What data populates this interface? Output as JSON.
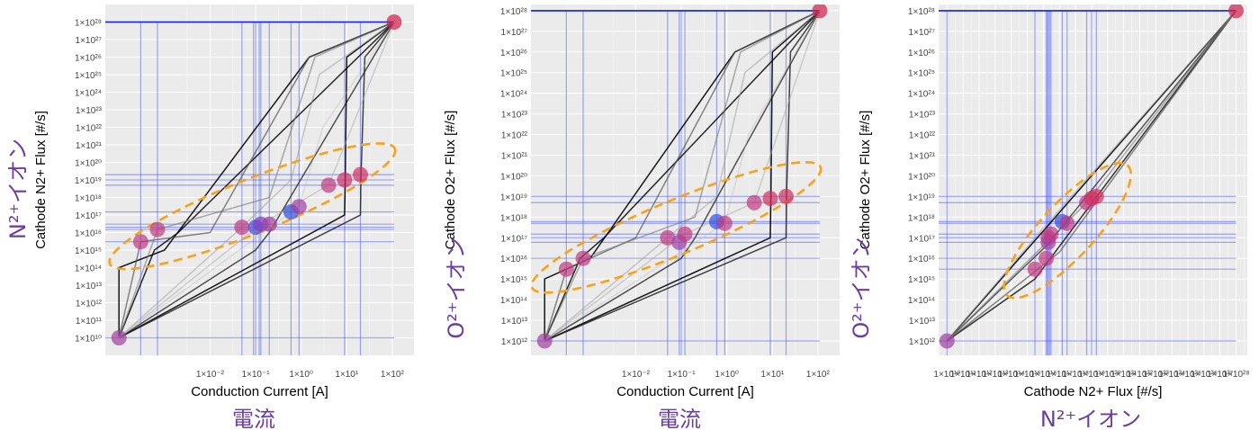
{
  "labels": {
    "p1_bottom": "電流",
    "p1_side": "N²⁺イオン",
    "p2_bottom": "電流",
    "p2_side": "O²⁺イオン",
    "p3_bottom": "N²⁺イオン",
    "p3_side": "O²⁺イオン"
  },
  "chart_data": [
    {
      "type": "scatter",
      "xlabel": "Conduction Current [A]",
      "ylabel": "Cathode N2+ Flux [#/s]",
      "xscale": "log",
      "yscale": "log",
      "xlim": [
        5e-05,
        300
      ],
      "ylim": [
        1000000000.0,
        1e+29
      ],
      "xticks": [
        0.01,
        0.1,
        1,
        10,
        100
      ],
      "xticklabels": [
        "1×10⁻²",
        "1×10⁻¹",
        "1×10⁰",
        "1×10¹",
        "1×10²"
      ],
      "yticks_exp": [
        10,
        11,
        12,
        13,
        14,
        15,
        16,
        17,
        18,
        19,
        20,
        21,
        22,
        23,
        24,
        25,
        26,
        27,
        28
      ],
      "grid": true,
      "points": [
        {
          "x": 0.0001,
          "y": 10000000000.0,
          "c": "#a040a0"
        },
        {
          "x": 0.0003,
          "y": 3000000000000000.0,
          "c": "#c03a80"
        },
        {
          "x": 0.0007,
          "y": 1.5e+16,
          "c": "#c03a80"
        },
        {
          "x": 0.05,
          "y": 2e+16,
          "c": "#c03a80"
        },
        {
          "x": 0.1,
          "y": 2e+16,
          "c": "#5050d0"
        },
        {
          "x": 0.13,
          "y": 3e+16,
          "c": "#8040c0"
        },
        {
          "x": 0.2,
          "y": 3e+16,
          "c": "#a040a0"
        },
        {
          "x": 0.6,
          "y": 1.5e+17,
          "c": "#3050e0"
        },
        {
          "x": 0.9,
          "y": 3e+17,
          "c": "#a040a0"
        },
        {
          "x": 4,
          "y": 5e+18,
          "c": "#c03a80"
        },
        {
          "x": 9,
          "y": 1e+19,
          "c": "#d03060"
        },
        {
          "x": 20,
          "y": 2e+19,
          "c": "#d03060"
        },
        {
          "x": 110,
          "y": 1e+28,
          "c": "#d0204a"
        }
      ],
      "vlines": [
        0.0003,
        0.0007,
        0.05,
        0.09,
        0.1,
        0.12,
        0.13,
        0.2,
        0.6,
        0.9,
        9,
        20
      ],
      "hlines": [
        10000000000.0,
        3000000000000000.0,
        1.5e+16,
        2e+16,
        3e+16,
        1.5e+17,
        5e+18,
        1e+19,
        2e+19,
        1e+28
      ],
      "anchor": [
        110,
        1e+28
      ],
      "ellipse": {
        "x": [
          0.00018,
          40
        ],
        "y": [
          500000000000000.0,
          2e+20
        ]
      },
      "curves": [
        {
          "x": [
            0.0001,
            0.0001,
            0.001,
            1.5,
            110
          ],
          "y": [
            10000000000.0,
            100000000000000.0,
            1000000000000000.0,
            1e+26,
            1e+28
          ],
          "c": "#000",
          "o": 0.9
        },
        {
          "x": [
            0.0001,
            0.0006,
            0.002,
            110
          ],
          "y": [
            10000000000.0,
            1000000000000000.0,
            1e+16,
            1e+28
          ],
          "c": "#111",
          "o": 0.9
        },
        {
          "x": [
            0.0001,
            0.1,
            0.2,
            110
          ],
          "y": [
            10000000000.0,
            1000000000000000.0,
            1e+16,
            1e+28
          ],
          "c": "#333",
          "o": 0.85
        },
        {
          "x": [
            0.0001,
            9,
            9.3,
            10,
            110
          ],
          "y": [
            10000000000.0,
            1e+17,
            1e+19,
            1e+26,
            1e+28
          ],
          "c": "#000",
          "o": 0.9
        },
        {
          "x": [
            0.0001,
            20,
            20.5,
            25,
            110
          ],
          "y": [
            10000000000.0,
            1e+17,
            1e+19,
            1e+26,
            1e+28
          ],
          "c": "#222",
          "o": 0.85
        },
        {
          "x": [
            0.0001,
            0.0003,
            0.01,
            1.5,
            110
          ],
          "y": [
            10000000000.0,
            3000000000000000.0,
            1e+16,
            1e+26,
            1e+28
          ],
          "c": "#555",
          "o": 0.7
        },
        {
          "x": [
            0.0001,
            0.0007,
            0.2,
            2,
            110
          ],
          "y": [
            10000000000.0,
            1.5e+16,
            1e+18,
            1e+26,
            1e+28
          ],
          "c": "#777",
          "o": 0.6
        },
        {
          "x": [
            0.0001,
            0.05,
            0.6,
            2.5,
            110
          ],
          "y": [
            10000000000.0,
            2e+16,
            1e+19,
            1e+25,
            1e+28
          ],
          "c": "#999",
          "o": 0.5
        },
        {
          "x": [
            0.0001,
            0.13,
            4,
            110
          ],
          "y": [
            10000000000.0,
            3e+16,
            5e+18,
            1e+28
          ],
          "c": "#aaa",
          "o": 0.5
        },
        {
          "x": [
            0.0001,
            0.9,
            3,
            110
          ],
          "y": [
            10000000000.0,
            3e+17,
            1e+22,
            1e+28
          ],
          "c": "#bbb",
          "o": 0.4
        }
      ]
    },
    {
      "type": "scatter",
      "xlabel": "Conduction Current [A]",
      "ylabel": "Cathode O2+ Flux [#/s]",
      "xscale": "log",
      "yscale": "log",
      "xlim": [
        5e-05,
        300
      ],
      "ylim": [
        200000000000.0,
        2e+28
      ],
      "xticks": [
        0.01,
        0.1,
        1,
        10,
        100
      ],
      "xticklabels": [
        "1×10⁻²",
        "1×10⁻¹",
        "1×10⁰",
        "1×10¹",
        "1×10²"
      ],
      "yticks_exp": [
        12,
        13,
        14,
        15,
        16,
        17,
        18,
        19,
        20,
        21,
        22,
        23,
        24,
        25,
        26,
        27,
        28
      ],
      "grid": true,
      "points": [
        {
          "x": 0.0001,
          "y": 1000000000000.0,
          "c": "#a040a0"
        },
        {
          "x": 0.0003,
          "y": 3000000000000000.0,
          "c": "#c03a80"
        },
        {
          "x": 0.0007,
          "y": 1e+16,
          "c": "#c03a80"
        },
        {
          "x": 0.05,
          "y": 1e+17,
          "c": "#c03a80"
        },
        {
          "x": 0.09,
          "y": 6e+16,
          "c": "#a040a0"
        },
        {
          "x": 0.12,
          "y": 1.5e+17,
          "c": "#c03a80"
        },
        {
          "x": 0.6,
          "y": 6e+17,
          "c": "#3050e0"
        },
        {
          "x": 0.9,
          "y": 5e+17,
          "c": "#c03a80"
        },
        {
          "x": 4,
          "y": 5e+18,
          "c": "#c03a80"
        },
        {
          "x": 9,
          "y": 8e+18,
          "c": "#d03060"
        },
        {
          "x": 20,
          "y": 1e+19,
          "c": "#d03060"
        },
        {
          "x": 110,
          "y": 1e+28,
          "c": "#d0204a"
        }
      ],
      "vlines": [
        0.0003,
        0.0007,
        0.05,
        0.09,
        0.1,
        0.12,
        0.6,
        0.9,
        9,
        20
      ],
      "hlines": [
        1000000000000.0,
        1e+16,
        6e+16,
        1e+17,
        1.5e+17,
        5e+17,
        6e+17,
        5e+18,
        1e+19,
        1e+28
      ],
      "anchor": [
        110,
        1e+28
      ],
      "ellipse": {
        "x": [
          0.00015,
          40
        ],
        "y": [
          1000000000000000.0,
          1e+20
        ]
      },
      "curves": [
        {
          "x": [
            0.0001,
            0.0001,
            0.001,
            1.5,
            110
          ],
          "y": [
            1000000000000.0,
            1000000000000000.0,
            1e+16,
            1e+26,
            1e+28
          ],
          "c": "#000",
          "o": 0.9
        },
        {
          "x": [
            0.0001,
            0.0006,
            0.002,
            110
          ],
          "y": [
            1000000000000.0,
            1e+16,
            1e+17,
            1e+28
          ],
          "c": "#111",
          "o": 0.9
        },
        {
          "x": [
            0.0001,
            0.1,
            0.2,
            110
          ],
          "y": [
            1000000000000.0,
            1e+16,
            1e+17,
            1e+28
          ],
          "c": "#333",
          "o": 0.85
        },
        {
          "x": [
            0.0001,
            9,
            9.3,
            10,
            110
          ],
          "y": [
            1000000000000.0,
            1e+17,
            1e+19,
            1e+26,
            1e+28
          ],
          "c": "#000",
          "o": 0.9
        },
        {
          "x": [
            0.0001,
            20,
            20.5,
            25,
            110
          ],
          "y": [
            1000000000000.0,
            1e+17,
            1e+19,
            1e+26,
            1e+28
          ],
          "c": "#222",
          "o": 0.85
        },
        {
          "x": [
            0.0001,
            0.0003,
            0.01,
            1.5,
            110
          ],
          "y": [
            1000000000000.0,
            3000000000000000.0,
            1e+17,
            1e+26,
            1e+28
          ],
          "c": "#555",
          "o": 0.7
        },
        {
          "x": [
            0.0001,
            0.0007,
            0.2,
            2,
            110
          ],
          "y": [
            1000000000000.0,
            1e+16,
            1e+18,
            1e+26,
            1e+28
          ],
          "c": "#777",
          "o": 0.6
        },
        {
          "x": [
            0.0001,
            0.05,
            0.6,
            2.5,
            110
          ],
          "y": [
            1000000000000.0,
            1e+17,
            1e+19,
            1e+25,
            1e+28
          ],
          "c": "#999",
          "o": 0.5
        },
        {
          "x": [
            0.0001,
            0.12,
            4,
            110
          ],
          "y": [
            1000000000000.0,
            1.5e+17,
            5e+18,
            1e+28
          ],
          "c": "#aaa",
          "o": 0.5
        },
        {
          "x": [
            0.0001,
            0.9,
            3,
            110
          ],
          "y": [
            1000000000000.0,
            5e+17,
            1e+22,
            1e+28
          ],
          "c": "#bbb",
          "o": 0.4
        }
      ]
    },
    {
      "type": "scatter",
      "xlabel": "Cathode N2+ Flux [#/s]",
      "ylabel": "Cathode O2+ Flux [#/s]",
      "xscale": "log",
      "yscale": "log",
      "xlim": [
        3000000000.0,
        5e+28
      ],
      "ylim": [
        200000000000.0,
        2e+28
      ],
      "xticks_exp": [
        10,
        11,
        12,
        13,
        14,
        15,
        16,
        17,
        18,
        19,
        20,
        21,
        22,
        23,
        24,
        25,
        26,
        27,
        28
      ],
      "yticks_exp": [
        12,
        13,
        14,
        15,
        16,
        17,
        18,
        19,
        20,
        21,
        22,
        23,
        24,
        25,
        26,
        27,
        28
      ],
      "grid": true,
      "points": [
        {
          "x": 10000000000.0,
          "y": 1000000000000.0,
          "c": "#a040a0"
        },
        {
          "x": 3000000000000000.0,
          "y": 3000000000000000.0,
          "c": "#c03a80"
        },
        {
          "x": 1.5e+16,
          "y": 1e+16,
          "c": "#c03a80"
        },
        {
          "x": 2e+16,
          "y": 1e+17,
          "c": "#c03a80"
        },
        {
          "x": 2e+16,
          "y": 6e+16,
          "c": "#a040a0"
        },
        {
          "x": 3e+16,
          "y": 1.5e+17,
          "c": "#c03a80"
        },
        {
          "x": 1.5e+17,
          "y": 6e+17,
          "c": "#3050e0"
        },
        {
          "x": 3e+17,
          "y": 5e+17,
          "c": "#c03a80"
        },
        {
          "x": 5e+18,
          "y": 5e+18,
          "c": "#c03a80"
        },
        {
          "x": 1e+19,
          "y": 8e+18,
          "c": "#d03060"
        },
        {
          "x": 2e+19,
          "y": 1e+19,
          "c": "#d03060"
        },
        {
          "x": 1e+28,
          "y": 1e+28,
          "c": "#d0204a"
        }
      ],
      "vlines": [
        10000000000.0,
        3000000000000000.0,
        1.5e+16,
        1.8e+16,
        2e+16,
        2.5e+16,
        3e+16,
        1.5e+17,
        3e+17,
        5e+18,
        1e+19,
        2e+19
      ],
      "hlines": [
        1000000000000.0,
        3000000000000000.0,
        1e+16,
        6e+16,
        1e+17,
        1.5e+17,
        5e+17,
        6e+17,
        5e+18,
        1e+19
      ],
      "anchor": [
        1e+28,
        1e+28
      ],
      "ellipse": {
        "x": [
          500000000000000.0,
          2e+20
        ],
        "y": [
          1000000000000000.0,
          5e+19
        ]
      },
      "curves": [
        {
          "x": [
            10000000000.0,
            1e+28
          ],
          "y": [
            1000000000000.0,
            1e+28
          ],
          "c": "#000",
          "o": 0.9
        },
        {
          "x": [
            10000000000.0,
            3000000000000000.0,
            1e+28
          ],
          "y": [
            1000000000000.0,
            1000000000000000.0,
            1e+28
          ],
          "c": "#111",
          "o": 0.85
        },
        {
          "x": [
            10000000000.0,
            2e+16,
            1e+28
          ],
          "y": [
            1000000000000.0,
            5e+16,
            1e+28
          ],
          "c": "#333",
          "o": 0.8
        },
        {
          "x": [
            10000000000.0,
            1e+17,
            1e+28
          ],
          "y": [
            1000000000000.0,
            2e+16,
            1e+28
          ],
          "c": "#555",
          "o": 0.7
        },
        {
          "x": [
            10000000000.0,
            5e+18,
            1e+28
          ],
          "y": [
            1000000000000.0,
            5e+18,
            1e+28
          ],
          "c": "#777",
          "o": 0.6
        },
        {
          "x": [
            10000000000.0,
            1e+16,
            1e+28
          ],
          "y": [
            1000000000000.0,
            3e+17,
            1e+28
          ],
          "c": "#999",
          "o": 0.5
        }
      ]
    }
  ]
}
